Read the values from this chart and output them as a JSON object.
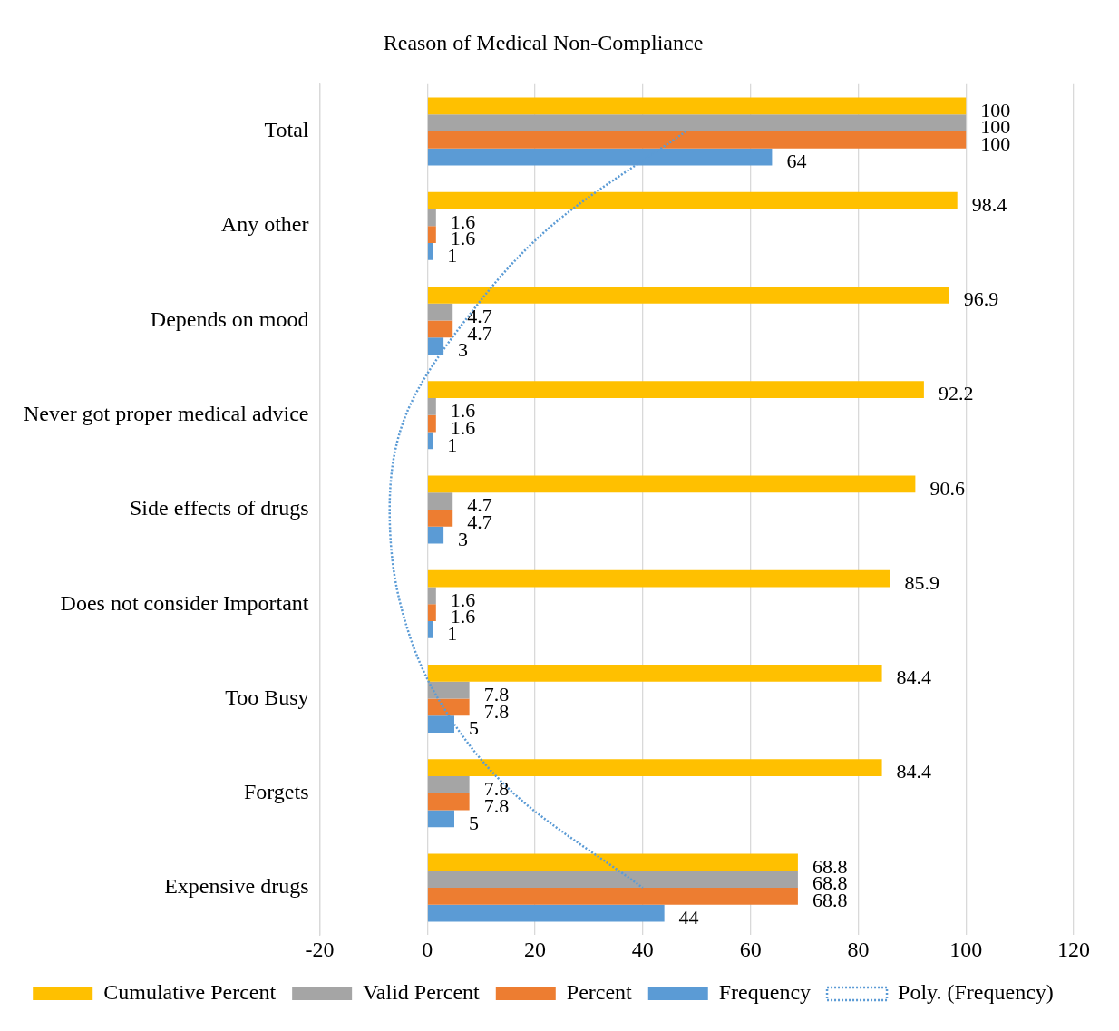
{
  "chart_data": {
    "type": "bar",
    "orientation": "horizontal",
    "title": "Reason of Medical Non-Compliance",
    "categories": [
      "Total",
      "Any other",
      "Depends on mood",
      "Never got proper medical advice",
      "Side effects of drugs",
      "Does not consider Important",
      "Too Busy",
      "Forgets",
      "Expensive drugs"
    ],
    "series": [
      {
        "name": "Cumulative Percent",
        "color": "#ffc000",
        "values": [
          100,
          98.4,
          96.9,
          92.2,
          90.6,
          85.9,
          84.4,
          84.4,
          68.8
        ],
        "value_labels": [
          "100",
          "98.4",
          "96.9",
          "92.2",
          "90.6",
          "85.9",
          "84.4",
          "84.4",
          "68.8"
        ]
      },
      {
        "name": "Valid Percent",
        "color": "#a5a5a5",
        "values": [
          100,
          1.6,
          4.7,
          1.6,
          4.7,
          1.6,
          7.8,
          7.8,
          68.8
        ],
        "value_labels": [
          "100",
          "1.6",
          "4.7",
          "1.6",
          "4.7",
          "1.6",
          "7.8",
          "7.8",
          "68.8"
        ]
      },
      {
        "name": "Percent",
        "color": "#ed7d31",
        "values": [
          100,
          1.6,
          4.7,
          1.6,
          4.7,
          1.6,
          7.8,
          7.8,
          68.8
        ],
        "value_labels": [
          "100",
          "1.6",
          "4.7",
          "1.6",
          "4.7",
          "1.6",
          "7.8",
          "7.8",
          "68.8"
        ]
      },
      {
        "name": "Frequency",
        "color": "#5b9bd5",
        "values": [
          64,
          1,
          3,
          1,
          3,
          1,
          5,
          5,
          44
        ],
        "value_labels": [
          "64",
          "1",
          "3",
          "1",
          "3",
          "1",
          "5",
          "5",
          "44"
        ]
      },
      {
        "name": "Poly. (Frequency)",
        "type": "line",
        "color": "#5b9bd5",
        "line_style": "dotted",
        "marker": "none",
        "values": [
          48,
          23,
          7,
          -4,
          -7,
          -5,
          2,
          16,
          40
        ]
      }
    ],
    "xlim": [
      -20,
      120
    ],
    "xticks": [
      -20,
      0,
      20,
      40,
      60,
      80,
      100,
      120
    ],
    "grid": "x",
    "legend": "bottom"
  }
}
